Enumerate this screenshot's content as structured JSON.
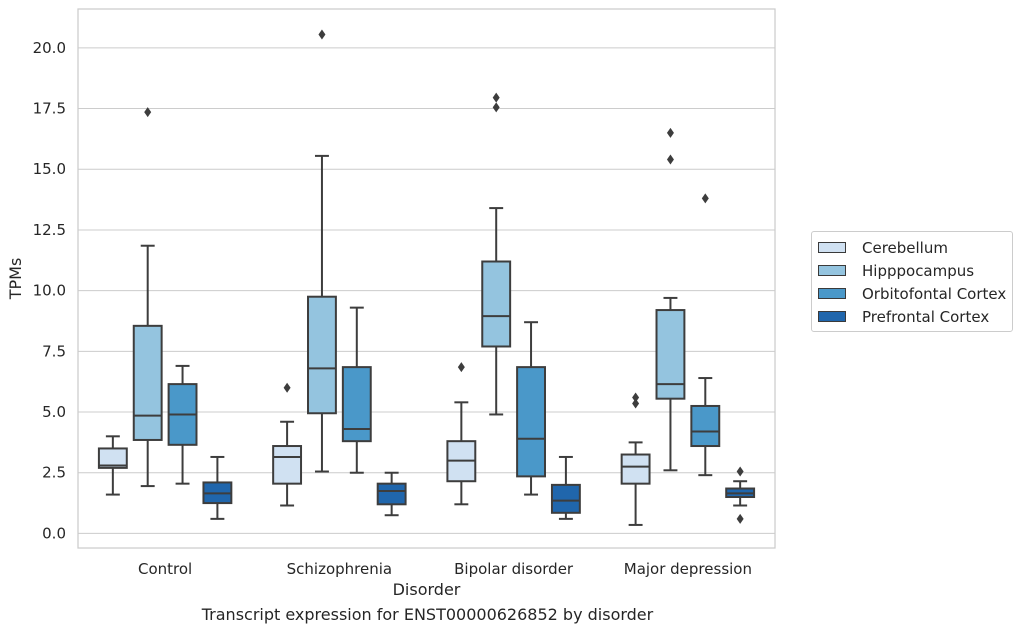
{
  "caption": "Transcript expression for ENST00000626852 by disorder",
  "chart_data": {
    "type": "box",
    "xlabel": "Disorder",
    "ylabel": "TPMs",
    "categories": [
      "Control",
      "Schizophrenia",
      "Bipolar disorder",
      "Major depression"
    ],
    "ylim": [
      -0.6,
      21.6
    ],
    "yticks": [
      "0.0",
      "2.5",
      "5.0",
      "7.5",
      "10.0",
      "12.5",
      "15.0",
      "17.5",
      "20.0"
    ],
    "grid": true,
    "legend_position": "right",
    "series": [
      {
        "name": "Cerebellum",
        "color": "#d0e1f2",
        "boxes": [
          {
            "whislo": 1.6,
            "q1": 2.7,
            "med": 2.8,
            "q3": 3.5,
            "whishi": 4.0,
            "fliers": []
          },
          {
            "whislo": 1.15,
            "q1": 2.05,
            "med": 3.15,
            "q3": 3.6,
            "whishi": 4.6,
            "fliers": [
              6.0
            ]
          },
          {
            "whislo": 1.2,
            "q1": 2.15,
            "med": 3.0,
            "q3": 3.8,
            "whishi": 5.4,
            "fliers": [
              6.85
            ]
          },
          {
            "whislo": 0.35,
            "q1": 2.05,
            "med": 2.75,
            "q3": 3.25,
            "whishi": 3.75,
            "fliers": [
              5.35,
              5.6
            ]
          }
        ]
      },
      {
        "name": "Hipppocampus",
        "color": "#94c4df",
        "boxes": [
          {
            "whislo": 1.95,
            "q1": 3.85,
            "med": 4.85,
            "q3": 8.55,
            "whishi": 11.85,
            "fliers": [
              17.35
            ]
          },
          {
            "whislo": 2.55,
            "q1": 4.95,
            "med": 6.8,
            "q3": 9.75,
            "whishi": 15.55,
            "fliers": [
              20.55
            ]
          },
          {
            "whislo": 4.9,
            "q1": 7.7,
            "med": 8.95,
            "q3": 11.2,
            "whishi": 13.4,
            "fliers": [
              17.55,
              17.95
            ]
          },
          {
            "whislo": 2.6,
            "q1": 5.55,
            "med": 6.15,
            "q3": 9.2,
            "whishi": 9.7,
            "fliers": [
              15.4,
              16.5
            ]
          }
        ]
      },
      {
        "name": "Orbitofontal Cortex",
        "color": "#4a98c9",
        "boxes": [
          {
            "whislo": 2.05,
            "q1": 3.65,
            "med": 4.9,
            "q3": 6.15,
            "whishi": 6.9,
            "fliers": []
          },
          {
            "whislo": 2.5,
            "q1": 3.8,
            "med": 4.3,
            "q3": 6.85,
            "whishi": 9.3,
            "fliers": []
          },
          {
            "whislo": 1.6,
            "q1": 2.35,
            "med": 3.9,
            "q3": 6.85,
            "whishi": 8.7,
            "fliers": []
          },
          {
            "whislo": 2.4,
            "q1": 3.6,
            "med": 4.2,
            "q3": 5.25,
            "whishi": 6.4,
            "fliers": [
              13.8
            ]
          }
        ]
      },
      {
        "name": "Prefrontal Cortex",
        "color": "#2066ac",
        "boxes": [
          {
            "whislo": 0.6,
            "q1": 1.25,
            "med": 1.65,
            "q3": 2.1,
            "whishi": 3.15,
            "fliers": []
          },
          {
            "whislo": 0.75,
            "q1": 1.2,
            "med": 1.75,
            "q3": 2.05,
            "whishi": 2.5,
            "fliers": []
          },
          {
            "whislo": 0.6,
            "q1": 0.85,
            "med": 1.35,
            "q3": 2.0,
            "whishi": 3.15,
            "fliers": []
          },
          {
            "whislo": 1.15,
            "q1": 1.5,
            "med": 1.65,
            "q3": 1.85,
            "whishi": 2.15,
            "fliers": [
              0.6,
              2.55
            ]
          }
        ]
      }
    ]
  }
}
